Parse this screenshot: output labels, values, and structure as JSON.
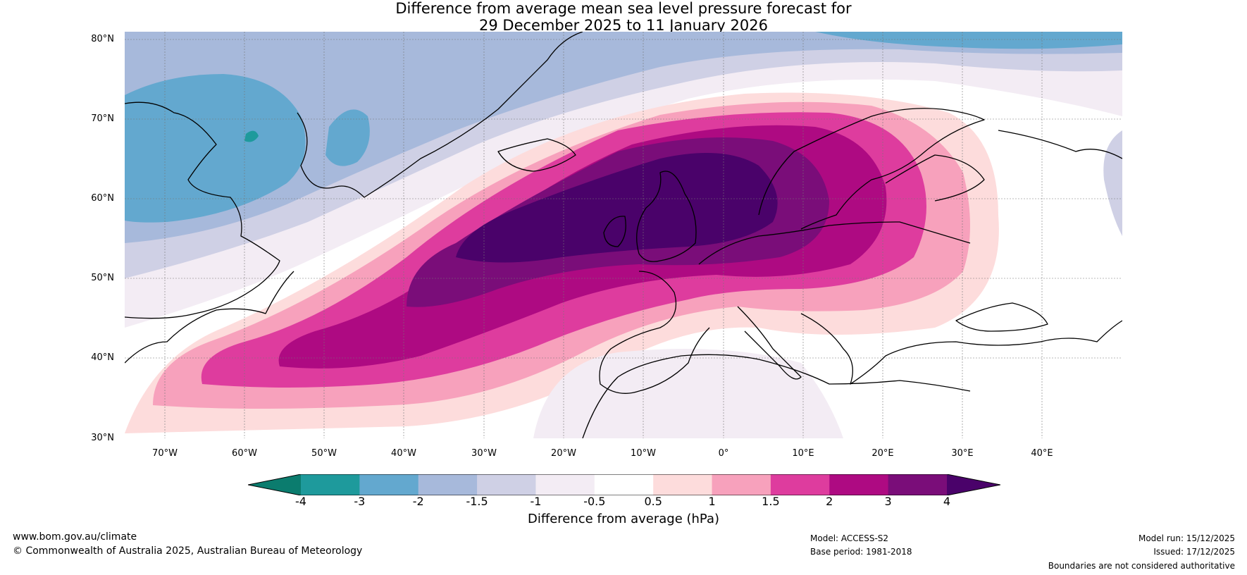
{
  "title": {
    "line1": "Difference from average mean sea level pressure forecast for",
    "line2": "29 December 2025 to 11 January 2026"
  },
  "map": {
    "lat_labels": [
      "80°N",
      "70°N",
      "60°N",
      "50°N",
      "40°N",
      "30°N"
    ],
    "lon_labels": [
      "70°W",
      "60°W",
      "50°W",
      "40°W",
      "30°W",
      "20°W",
      "10°W",
      "0°",
      "10°E",
      "20°E",
      "30°E",
      "40°E"
    ],
    "lat_range": [
      30,
      80
    ],
    "lon_range": [
      -75,
      50
    ],
    "gridlines": "dotted"
  },
  "colorbar": {
    "ticks": [
      "-4",
      "-3",
      "-2",
      "-1.5",
      "-1",
      "-0.5",
      "0.5",
      "1",
      "1.5",
      "2",
      "3",
      "4"
    ],
    "colors": [
      "#1e9a9c",
      "#63a8cf",
      "#a7b9db",
      "#cfd0e5",
      "#f3ecf4",
      "#ffffff",
      "#fddcdc",
      "#f7a1bc",
      "#de3c9e",
      "#ae0a82",
      "#7a0d79"
    ],
    "under_color": "#0b7c6e",
    "over_color": "#4a026a",
    "label": "Difference from average (hPa)"
  },
  "footer": {
    "website": "www.bom.gov.au/climate",
    "copyright": "© Commonwealth of Australia 2025, Australian Bureau of Meteorology",
    "model": "Model: ACCESS-S2",
    "base_period": "Base period: 1981-2018",
    "model_run": "Model run: 15/12/2025",
    "issued": "Issued: 17/12/2025",
    "disclaimer": "Boundaries are not considered authoritative"
  }
}
